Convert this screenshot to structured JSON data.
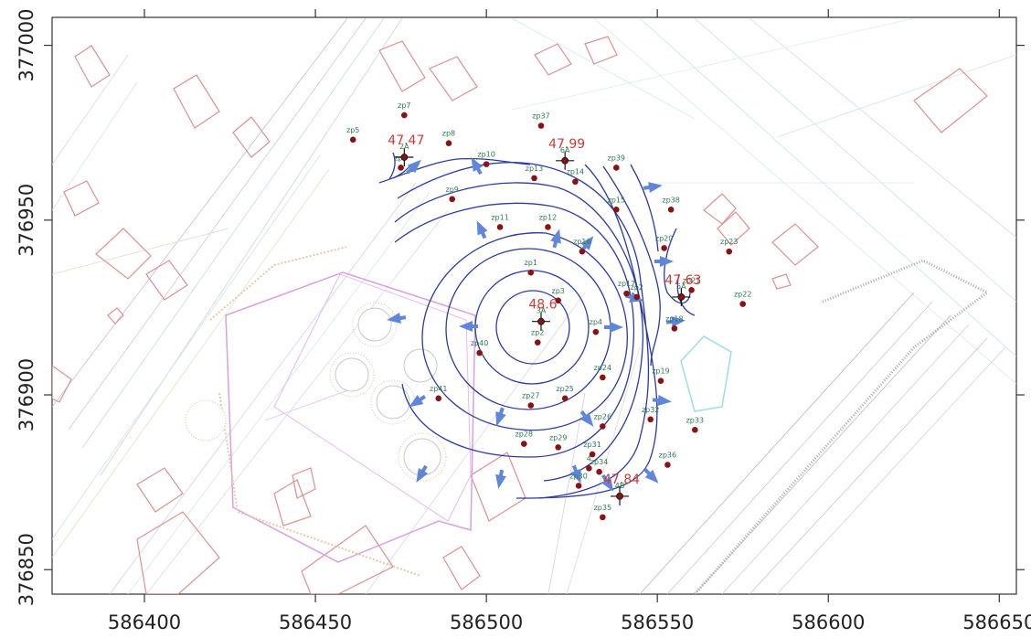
{
  "map": {
    "axes": {
      "x_ticks": [
        "586400",
        "586450",
        "586500",
        "586550",
        "586600",
        "586650"
      ],
      "y_ticks": [
        "377000",
        "376950",
        "376900",
        "376850"
      ],
      "x_values": [
        586400,
        586450,
        586500,
        586550,
        586600,
        586650
      ],
      "y_values": [
        377000,
        376950,
        376900,
        376850
      ],
      "x_range": [
        586373,
        586655
      ],
      "y_range": [
        376843,
        377008
      ]
    },
    "colors": {
      "contour": "#2b3aa6",
      "flow_arrow": "#5f86d8",
      "well": "#8b1212",
      "well_label": "#2f7a53",
      "head_label": "#d03a3a",
      "building_outline": "#e09090",
      "site_outline": "#d8a0e0"
    },
    "pumping_wells": [
      {
        "name": "2A",
        "x": 586476,
        "y": 376968,
        "head": "47.47"
      },
      {
        "name": "6A",
        "x": 586523,
        "y": 376967,
        "head": "47.99"
      },
      {
        "name": "3A",
        "x": 586516,
        "y": 376921,
        "head": "48.6"
      },
      {
        "name": "5A",
        "x": 586557,
        "y": 376928,
        "head": "47.63"
      },
      {
        "name": "4B",
        "x": 586539,
        "y": 376871,
        "head": "47.84"
      }
    ],
    "piezometers": [
      {
        "name": "zp5",
        "x": 586461,
        "y": 376973
      },
      {
        "name": "zp7",
        "x": 586476,
        "y": 376980
      },
      {
        "name": "zp8",
        "x": 586489,
        "y": 376972
      },
      {
        "name": "zp6",
        "x": 586475,
        "y": 376965
      },
      {
        "name": "zp9",
        "x": 586490,
        "y": 376956
      },
      {
        "name": "zp10",
        "x": 586500,
        "y": 376966
      },
      {
        "name": "zp37",
        "x": 586516,
        "y": 376977
      },
      {
        "name": "zp13",
        "x": 586514,
        "y": 376962
      },
      {
        "name": "zp14",
        "x": 586526,
        "y": 376961
      },
      {
        "name": "zp39",
        "x": 586538,
        "y": 376965
      },
      {
        "name": "zp11",
        "x": 586504,
        "y": 376948
      },
      {
        "name": "zp12",
        "x": 586518,
        "y": 376948
      },
      {
        "name": "zp15",
        "x": 586538,
        "y": 376953
      },
      {
        "name": "zp38",
        "x": 586554,
        "y": 376953
      },
      {
        "name": "zp16",
        "x": 586528,
        "y": 376941
      },
      {
        "name": "zp20",
        "x": 586552,
        "y": 376942
      },
      {
        "name": "zp23",
        "x": 586571,
        "y": 376941
      },
      {
        "name": "zp1",
        "x": 586513,
        "y": 376935
      },
      {
        "name": "zp17",
        "x": 586541,
        "y": 376929
      },
      {
        "name": "zp2",
        "x": 586544,
        "y": 376928
      },
      {
        "name": "zp21",
        "x": 586560,
        "y": 376930
      },
      {
        "name": "zp22",
        "x": 586575,
        "y": 376926
      },
      {
        "name": "zp3",
        "x": 586521,
        "y": 376927
      },
      {
        "name": "zp4",
        "x": 586532,
        "y": 376918
      },
      {
        "name": "zp18",
        "x": 586555,
        "y": 376919
      },
      {
        "name": "zp2",
        "x": 586515,
        "y": 376915
      },
      {
        "name": "zp40",
        "x": 586498,
        "y": 376912
      },
      {
        "name": "zp24",
        "x": 586534,
        "y": 376905
      },
      {
        "name": "zp19",
        "x": 586551,
        "y": 376904
      },
      {
        "name": "zp41",
        "x": 586486,
        "y": 376899
      },
      {
        "name": "zp25",
        "x": 586523,
        "y": 376899
      },
      {
        "name": "zp27",
        "x": 586513,
        "y": 376897
      },
      {
        "name": "zp26",
        "x": 586534,
        "y": 376891
      },
      {
        "name": "zp32",
        "x": 586548,
        "y": 376893
      },
      {
        "name": "zp33",
        "x": 586561,
        "y": 376890
      },
      {
        "name": "zp28",
        "x": 586511,
        "y": 376886
      },
      {
        "name": "zp29",
        "x": 586521,
        "y": 376885
      },
      {
        "name": "zp31",
        "x": 586531,
        "y": 376883
      },
      {
        "name": "zp36",
        "x": 586553,
        "y": 376880
      },
      {
        "name": "zp34",
        "x": 586533,
        "y": 376878
      },
      {
        "name": "4",
        "x": 586530,
        "y": 376879
      },
      {
        "name": "zp30",
        "x": 586527,
        "y": 376874
      },
      {
        "name": "zp35",
        "x": 586534,
        "y": 376865
      }
    ]
  }
}
